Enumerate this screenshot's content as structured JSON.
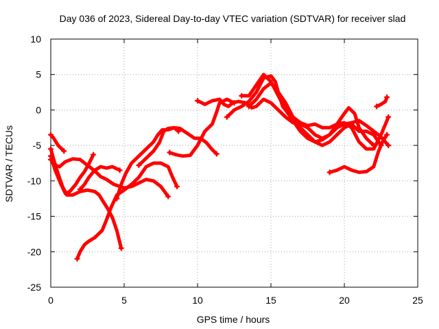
{
  "chart_data": {
    "type": "line",
    "title": "Day 036 of 2023, Sidereal Day-to-day VTEC variation (SDTVAR) for receiver slad",
    "xlabel": "GPS time / hours",
    "ylabel": "SDTVAR / TECUs",
    "xlim": [
      0,
      25
    ],
    "ylim": [
      -25,
      10
    ],
    "xticks": [
      0,
      5,
      10,
      15,
      20,
      25
    ],
    "yticks": [
      -25,
      -20,
      -15,
      -10,
      -5,
      0,
      5,
      10
    ],
    "xtick_labels": [
      "0",
      "5",
      "10",
      "15",
      "20",
      "25"
    ],
    "ytick_labels": [
      "-25",
      "-20",
      "-15",
      "-10",
      "-5",
      "0",
      "5",
      "10"
    ],
    "grid": true,
    "series_color": "#ff0000",
    "series": [
      {
        "name": "arc-1",
        "points": [
          [
            0.0,
            -3.5
          ],
          [
            0.2,
            -4.0
          ],
          [
            0.5,
            -5.0
          ],
          [
            0.9,
            -5.8
          ]
        ]
      },
      {
        "name": "arc-2",
        "points": [
          [
            0.0,
            -7.0
          ],
          [
            0.3,
            -7.8
          ],
          [
            0.6,
            -8.0
          ],
          [
            1.0,
            -7.3
          ],
          [
            1.5,
            -6.9
          ],
          [
            2.0,
            -7.0
          ],
          [
            2.5,
            -7.8
          ],
          [
            3.0,
            -8.6
          ],
          [
            3.4,
            -9.4
          ],
          [
            3.8,
            -9.8
          ],
          [
            4.3,
            -10.5
          ],
          [
            5.0,
            -11.0
          ],
          [
            5.5,
            -10.8
          ],
          [
            6.0,
            -10.3
          ],
          [
            6.5,
            -9.8
          ],
          [
            7.0,
            -10.0
          ],
          [
            7.5,
            -10.8
          ],
          [
            8.0,
            -12.2
          ]
        ]
      },
      {
        "name": "arc-3",
        "points": [
          [
            0.0,
            -5.5
          ],
          [
            0.2,
            -7.0
          ],
          [
            0.5,
            -9.0
          ],
          [
            0.8,
            -10.8
          ],
          [
            1.1,
            -12.0
          ],
          [
            1.5,
            -12.0
          ],
          [
            2.0,
            -11.5
          ],
          [
            2.5,
            -11.3
          ],
          [
            3.0,
            -11.5
          ],
          [
            3.3,
            -12.0
          ],
          [
            3.6,
            -13.0
          ],
          [
            3.9,
            -14.0
          ],
          [
            4.2,
            -15.2
          ],
          [
            4.5,
            -17.0
          ],
          [
            4.8,
            -19.5
          ]
        ]
      },
      {
        "name": "arc-4",
        "points": [
          [
            0.0,
            -6.5
          ],
          [
            0.3,
            -8.5
          ],
          [
            0.7,
            -10.5
          ],
          [
            1.0,
            -11.8
          ],
          [
            1.3,
            -11.5
          ],
          [
            1.7,
            -10.5
          ],
          [
            2.0,
            -9.5
          ],
          [
            2.3,
            -8.7
          ],
          [
            2.6,
            -7.6
          ],
          [
            2.9,
            -6.3
          ]
        ]
      },
      {
        "name": "arc-5",
        "points": [
          [
            1.8,
            -21.0
          ],
          [
            2.0,
            -20.0
          ],
          [
            2.3,
            -19.0
          ],
          [
            2.6,
            -18.5
          ],
          [
            3.0,
            -18.0
          ],
          [
            3.5,
            -17.0
          ],
          [
            3.8,
            -15.5
          ],
          [
            4.1,
            -13.8
          ],
          [
            4.5,
            -12.0
          ],
          [
            5.0,
            -11.3
          ],
          [
            5.5,
            -10.5
          ],
          [
            6.0,
            -9.5
          ],
          [
            6.5,
            -8.0
          ],
          [
            7.0,
            -7.5
          ],
          [
            7.5,
            -7.5
          ],
          [
            8.0,
            -8.0
          ],
          [
            8.3,
            -9.5
          ],
          [
            8.6,
            -10.8
          ]
        ]
      },
      {
        "name": "arc-6",
        "points": [
          [
            2.0,
            -11.2
          ],
          [
            2.3,
            -10.5
          ],
          [
            2.6,
            -9.5
          ],
          [
            3.0,
            -8.5
          ],
          [
            3.4,
            -8.0
          ],
          [
            3.8,
            -8.2
          ],
          [
            4.2,
            -8.0
          ],
          [
            4.7,
            -8.5
          ]
        ]
      },
      {
        "name": "arc-7",
        "points": [
          [
            4.5,
            -12.5
          ],
          [
            4.8,
            -10.5
          ],
          [
            5.1,
            -9.0
          ],
          [
            5.5,
            -7.5
          ],
          [
            6.0,
            -6.5
          ],
          [
            6.5,
            -5.5
          ],
          [
            7.0,
            -4.5
          ],
          [
            7.3,
            -3.5
          ],
          [
            7.6,
            -2.8
          ],
          [
            8.0,
            -2.8
          ],
          [
            8.4,
            -2.5
          ],
          [
            8.8,
            -2.6
          ],
          [
            9.3,
            -3.3
          ],
          [
            9.8,
            -4.0
          ],
          [
            10.2,
            -4.0
          ],
          [
            10.6,
            -4.6
          ],
          [
            11.0,
            -5.6
          ],
          [
            11.3,
            -6.2
          ]
        ]
      },
      {
        "name": "arc-8",
        "points": [
          [
            6.0,
            -7.8
          ],
          [
            6.5,
            -6.8
          ],
          [
            7.0,
            -5.8
          ],
          [
            7.4,
            -4.6
          ],
          [
            7.7,
            -3.0
          ],
          [
            8.0,
            -2.6
          ],
          [
            8.4,
            -2.5
          ],
          [
            8.7,
            -3.0
          ]
        ]
      },
      {
        "name": "arc-9",
        "points": [
          [
            8.1,
            -6.0
          ],
          [
            8.5,
            -6.3
          ],
          [
            9.0,
            -6.5
          ],
          [
            9.5,
            -6.4
          ],
          [
            10.0,
            -5.0
          ],
          [
            10.5,
            -3.0
          ],
          [
            11.0,
            -2.0
          ],
          [
            11.3,
            -0.3
          ],
          [
            11.5,
            1.0
          ],
          [
            12.0,
            1.5
          ],
          [
            12.5,
            1.0
          ]
        ]
      },
      {
        "name": "arc-10",
        "points": [
          [
            10.0,
            1.3
          ],
          [
            10.5,
            0.8
          ],
          [
            11.0,
            1.3
          ],
          [
            11.5,
            1.5
          ],
          [
            11.8,
            0.8
          ],
          [
            12.1,
            0.5
          ],
          [
            12.4,
            1.0
          ],
          [
            12.8,
            1.2
          ],
          [
            13.3,
            1.0
          ],
          [
            13.7,
            0.3
          ],
          [
            14.0,
            0.5
          ],
          [
            14.5,
            1.5
          ],
          [
            15.0,
            1.0
          ],
          [
            15.5,
            0.0
          ],
          [
            16.0,
            -1.0
          ],
          [
            16.5,
            -1.8
          ],
          [
            17.0,
            -2.0
          ],
          [
            17.5,
            -2.5
          ],
          [
            18.0,
            -3.5
          ],
          [
            18.5,
            -4.0
          ],
          [
            19.0,
            -3.5
          ],
          [
            19.5,
            -2.5
          ],
          [
            20.0,
            -2.0
          ],
          [
            20.5,
            -1.8
          ],
          [
            21.0,
            -1.5
          ],
          [
            21.5,
            -2.2
          ],
          [
            22.0,
            -3.0
          ],
          [
            22.5,
            -3.8
          ],
          [
            23.0,
            -5.0
          ]
        ]
      },
      {
        "name": "arc-11",
        "points": [
          [
            12.0,
            -1.0
          ],
          [
            12.5,
            0.0
          ],
          [
            13.0,
            0.5
          ],
          [
            13.5,
            1.2
          ],
          [
            14.0,
            2.5
          ],
          [
            14.5,
            4.5
          ],
          [
            15.0,
            4.8
          ],
          [
            15.3,
            4.0
          ],
          [
            15.5,
            2.5
          ],
          [
            15.8,
            0.5
          ],
          [
            16.2,
            -0.5
          ],
          [
            16.5,
            -1.5
          ],
          [
            17.0,
            -2.5
          ],
          [
            17.5,
            -3.5
          ],
          [
            18.0,
            -4.5
          ],
          [
            18.5,
            -5.0
          ],
          [
            19.0,
            -4.5
          ],
          [
            19.5,
            -3.5
          ],
          [
            20.0,
            -2.5
          ],
          [
            20.5,
            -2.0
          ],
          [
            21.0,
            -3.0
          ],
          [
            21.5,
            -3.0
          ],
          [
            22.0,
            -3.5
          ],
          [
            22.5,
            -5.0
          ]
        ]
      },
      {
        "name": "arc-12",
        "points": [
          [
            13.0,
            2.0
          ],
          [
            13.5,
            2.0
          ],
          [
            14.0,
            3.5
          ],
          [
            14.5,
            5.0
          ],
          [
            15.0,
            4.0
          ],
          [
            15.5,
            2.0
          ],
          [
            16.0,
            0.0
          ],
          [
            16.5,
            -1.5
          ],
          [
            17.0,
            -3.0
          ],
          [
            17.5,
            -4.0
          ],
          [
            18.0,
            -4.5
          ],
          [
            18.5,
            -4.2
          ],
          [
            19.0,
            -3.5
          ],
          [
            19.5,
            -2.0
          ],
          [
            20.0,
            -0.5
          ],
          [
            20.3,
            0.3
          ],
          [
            20.7,
            -0.5
          ],
          [
            21.0,
            -2.5
          ],
          [
            21.5,
            -4.0
          ],
          [
            22.0,
            -5.0
          ]
        ]
      },
      {
        "name": "arc-13",
        "points": [
          [
            13.5,
            0.5
          ],
          [
            14.0,
            1.5
          ],
          [
            14.5,
            3.0
          ],
          [
            15.0,
            3.8
          ],
          [
            15.5,
            2.5
          ],
          [
            16.0,
            1.0
          ],
          [
            16.5,
            -1.0
          ],
          [
            17.0,
            -1.8
          ],
          [
            17.5,
            -2.2
          ],
          [
            18.0,
            -2.0
          ],
          [
            18.5,
            -2.5
          ],
          [
            19.0,
            -2.5
          ],
          [
            19.5,
            -2.0
          ],
          [
            20.0,
            -1.8
          ],
          [
            20.5,
            -2.5
          ],
          [
            21.0,
            -4.5
          ],
          [
            21.5,
            -5.5
          ],
          [
            22.0,
            -5.5
          ],
          [
            22.5,
            -3.5
          ],
          [
            23.0,
            -1.0
          ]
        ]
      },
      {
        "name": "arc-14",
        "points": [
          [
            19.0,
            -8.8
          ],
          [
            19.5,
            -8.5
          ],
          [
            20.0,
            -8.0
          ],
          [
            20.5,
            -8.5
          ],
          [
            21.0,
            -8.8
          ],
          [
            21.5,
            -8.7
          ],
          [
            22.0,
            -8.0
          ],
          [
            22.3,
            -6.0
          ],
          [
            22.6,
            -4.5
          ],
          [
            22.9,
            -3.5
          ]
        ]
      },
      {
        "name": "arc-15",
        "points": [
          [
            22.2,
            0.5
          ],
          [
            22.5,
            0.8
          ],
          [
            22.8,
            1.2
          ],
          [
            22.9,
            1.8
          ]
        ]
      }
    ]
  }
}
